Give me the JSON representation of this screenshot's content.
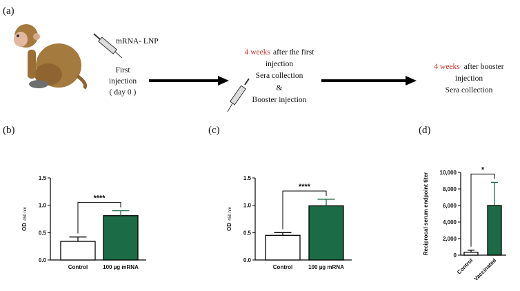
{
  "panel_labels": [
    "(a)",
    "(b)",
    "(c)",
    "(d)"
  ],
  "diagram": {
    "vaccine": "mRNA- LNP",
    "first_injection": [
      "First",
      "injection",
      "( day 0 )"
    ],
    "middle": {
      "highlight": "4 weeks",
      "rest": "after the first",
      "lines": [
        "injection",
        "Sera collection",
        "&",
        "Booster injection"
      ]
    },
    "right": {
      "highlight": "4 weeks",
      "rest": "after booster",
      "lines": [
        "injection",
        "Sera collection"
      ]
    }
  },
  "chart_data": [
    {
      "type": "bar",
      "ylabel": {
        "main": "OD",
        "sub": "450 nm"
      },
      "categories": [
        "Control",
        "100 µg mRNA"
      ],
      "values": [
        0.34,
        0.81
      ],
      "errors": [
        0.08,
        0.09
      ],
      "colors": [
        "#ffffff",
        "#1b6b46"
      ],
      "edgecolor": "#000000",
      "significance": "****",
      "ylim": [
        0,
        1.5
      ],
      "yticks": [
        {
          "value": 0,
          "label": "0.0"
        },
        0.5,
        {
          "value": 1,
          "label": "1.0"
        },
        1.5
      ]
    },
    {
      "type": "bar",
      "ylabel": {
        "main": "OD",
        "sub": "450 nm"
      },
      "categories": [
        "Control",
        "100 µg mRNA"
      ],
      "values": [
        0.45,
        0.99
      ],
      "errors": [
        0.05,
        0.12
      ],
      "colors": [
        "#ffffff",
        "#1b6b46"
      ],
      "edgecolor": "#000000",
      "significance": "****",
      "ylim": [
        0,
        1.5
      ],
      "yticks": [
        {
          "value": 0,
          "label": "0.0"
        },
        0.5,
        {
          "value": 1,
          "label": "1.0"
        },
        1.5
      ]
    },
    {
      "type": "bar",
      "ylabel": "Reciprocal serum endpoint titer",
      "categories": [
        "Control",
        "Vaccinated"
      ],
      "values": [
        350,
        6000
      ],
      "errors": [
        250,
        2800
      ],
      "colors": [
        "#ffffff",
        "#1b6b46"
      ],
      "edgecolor": "#000000",
      "significance": "*",
      "xtick_rotation": -45,
      "ylim": [
        0,
        10000
      ],
      "yticks": [
        0,
        {
          "value": 2000,
          "label": "2,000"
        },
        {
          "value": 4000,
          "label": "4,000"
        },
        {
          "value": 6000,
          "label": "6,000"
        },
        {
          "value": 8000,
          "label": "8,000"
        },
        {
          "value": 10000,
          "label": "10,000"
        }
      ]
    }
  ]
}
